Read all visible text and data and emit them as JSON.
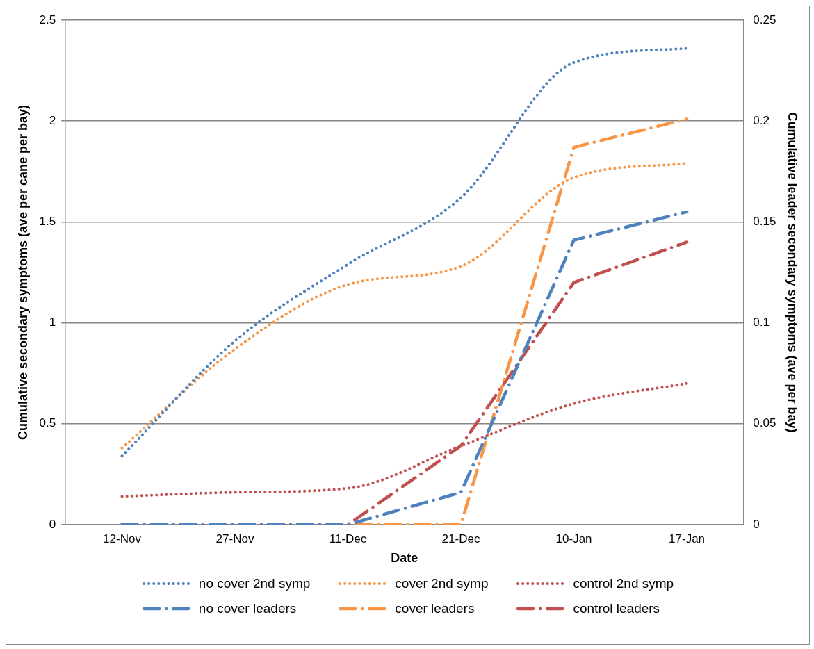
{
  "chart_data": {
    "type": "line",
    "xlabel": "Date",
    "ylabel": "Cumulative secondary symptoms (ave per cane per bay)",
    "y2label": "Cumulative leader secondary symptoms (ave per bay)",
    "categories": [
      "12-Nov",
      "27-Nov",
      "11-Dec",
      "21-Dec",
      "10-Jan",
      "17-Jan"
    ],
    "ylim": [
      0,
      2.5
    ],
    "yticks": [
      0,
      0.5,
      1,
      1.5,
      2,
      2.5
    ],
    "y2lim": [
      0,
      0.25
    ],
    "y2ticks": [
      0,
      0.05,
      0.1,
      0.15,
      0.2,
      0.25
    ],
    "grid": "y",
    "legend": "bottom",
    "series": [
      {
        "name": "no cover 2nd symp",
        "color": "#4f81bd",
        "line_style": "dotted",
        "values": [
          0.34,
          0.91,
          1.29,
          1.62,
          2.29,
          2.36
        ]
      },
      {
        "name": "cover 2nd symp",
        "color": "#f79646",
        "line_style": "dotted",
        "values": [
          0.38,
          0.87,
          1.19,
          1.28,
          1.72,
          1.79
        ]
      },
      {
        "name": "control 2nd symp",
        "color": "#c0504d",
        "line_style": "dotted",
        "values": [
          0.14,
          0.16,
          0.18,
          0.39,
          0.6,
          0.7
        ]
      },
      {
        "name": "no cover leaders",
        "color": "#4f81bd",
        "line_style": "dashed",
        "axis": "y2",
        "values": [
          0,
          0,
          0,
          0.016,
          0.141,
          0.155
        ]
      },
      {
        "name": "cover leaders",
        "color": "#f79646",
        "line_style": "dashed",
        "axis": "y2",
        "values": [
          0,
          0,
          0,
          0,
          0.187,
          0.201
        ]
      },
      {
        "name": "control leaders",
        "color": "#c0504d",
        "line_style": "dashed",
        "axis": "y2",
        "values": [
          0,
          0,
          0,
          0.039,
          0.12,
          0.14
        ]
      }
    ]
  }
}
